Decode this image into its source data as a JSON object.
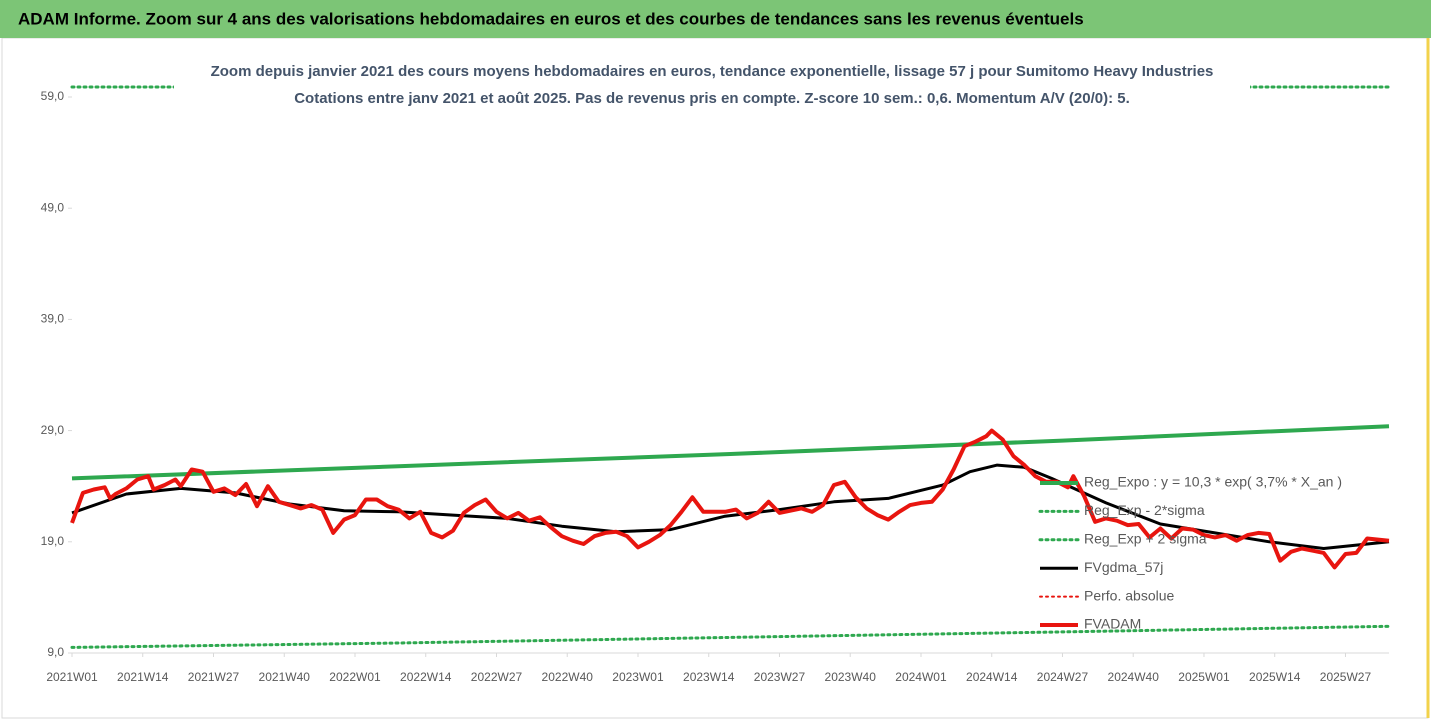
{
  "chart_data": {
    "type": "line",
    "header": "ADAM Informe. Zoom sur 4 ans des valorisations hebdomadaires en euros et des courbes de tendances sans les revenus éventuels",
    "title": "Zoom depuis janvier 2021 des cours moyens hebdomadaires en euros, tendance exponentielle, lissage 57 j pour Sumitomo Heavy Industries",
    "subtitle": "Cotations entre janv 2021 et août 2025.  Pas de revenus pris en compte. Z-score 10 sem.: 0,6. Momentum A/V (20/0): 5.",
    "xlim": [
      0,
      242
    ],
    "xticks": [
      {
        "value": 0,
        "label": "2021W01"
      },
      {
        "value": 13,
        "label": "2021W14"
      },
      {
        "value": 26,
        "label": "2021W27"
      },
      {
        "value": 39,
        "label": "2021W40"
      },
      {
        "value": 52,
        "label": "2022W01"
      },
      {
        "value": 65,
        "label": "2022W14"
      },
      {
        "value": 78,
        "label": "2022W27"
      },
      {
        "value": 91,
        "label": "2022W40"
      },
      {
        "value": 104,
        "label": "2023W01"
      },
      {
        "value": 117,
        "label": "2023W14"
      },
      {
        "value": 130,
        "label": "2023W27"
      },
      {
        "value": 143,
        "label": "2023W40"
      },
      {
        "value": 156,
        "label": "2024W01"
      },
      {
        "value": 169,
        "label": "2024W14"
      },
      {
        "value": 182,
        "label": "2024W27"
      },
      {
        "value": 195,
        "label": "2024W40"
      },
      {
        "value": 208,
        "label": "2025W01"
      },
      {
        "value": 221,
        "label": "2025W14"
      },
      {
        "value": 234,
        "label": "2025W27"
      }
    ],
    "ylim": [
      9,
      59
    ],
    "yticks": [
      {
        "value": 9,
        "label": "9,0"
      },
      {
        "value": 19,
        "label": "19,0"
      },
      {
        "value": 29,
        "label": "29,0"
      },
      {
        "value": 39,
        "label": "39,0"
      },
      {
        "value": 49,
        "label": "49,0"
      },
      {
        "value": 59,
        "label": "59,0"
      }
    ],
    "grid": false,
    "legend": "right",
    "series": [
      {
        "name": "Reg_Expo : y = 10,3 * exp( 3,7% *  X_an )",
        "color": "#2ea84f",
        "style": "solid",
        "width": 4,
        "x": [
          0,
          60,
          121,
          182,
          242
        ],
        "values": [
          24.7,
          25.8,
          26.9,
          28.1,
          29.4
        ]
      },
      {
        "name": "Reg_Exp - 2*sigma",
        "color": "#2ea84f",
        "style": "dotted",
        "width": 3,
        "x": [
          0,
          60,
          121,
          182,
          242
        ],
        "values": [
          9.5,
          9.9,
          10.4,
          10.9,
          11.4
        ]
      },
      {
        "name": "Reg_Exp + 2 sigma",
        "color": "#2ea84f",
        "style": "dotted",
        "width": 3,
        "x": [
          0,
          242
        ],
        "values": [
          59.9,
          59.9
        ]
      },
      {
        "name": "FVgdma_57j",
        "color": "#000000",
        "style": "solid",
        "width": 3,
        "x": [
          0,
          10,
          20,
          30,
          40,
          50,
          60,
          70,
          80,
          90,
          100,
          110,
          120,
          130,
          140,
          150,
          160,
          165,
          170,
          175,
          180,
          190,
          200,
          210,
          220,
          230,
          242
        ],
        "values": [
          21.6,
          23.3,
          23.8,
          23.4,
          22.4,
          21.8,
          21.7,
          21.4,
          21.1,
          20.4,
          19.9,
          20.1,
          21.3,
          21.9,
          22.6,
          22.9,
          24.1,
          25.3,
          25.9,
          25.7,
          24.7,
          22.5,
          20.6,
          19.8,
          19.0,
          18.4,
          19.0
        ]
      },
      {
        "name": "Perfo. absolue",
        "color": "#e8150f",
        "style": "dotted",
        "width": 2,
        "x": [],
        "values": []
      },
      {
        "name": "FVADAM",
        "color": "#e8150f",
        "style": "solid",
        "width": 4,
        "x": [
          0,
          2,
          4,
          6,
          7,
          8,
          10,
          12,
          14,
          15,
          17,
          19,
          20,
          22,
          24,
          26,
          28,
          30,
          32,
          34,
          36,
          38,
          40,
          42,
          44,
          46,
          48,
          50,
          52,
          54,
          56,
          58,
          60,
          62,
          64,
          66,
          68,
          70,
          72,
          74,
          76,
          78,
          80,
          82,
          84,
          86,
          88,
          90,
          92,
          94,
          96,
          98,
          100,
          102,
          104,
          106,
          108,
          110,
          112,
          114,
          116,
          118,
          120,
          122,
          124,
          126,
          128,
          130,
          132,
          134,
          136,
          138,
          140,
          142,
          144,
          146,
          148,
          150,
          152,
          154,
          156,
          158,
          160,
          162,
          164,
          166,
          168,
          169,
          171,
          173,
          175,
          177,
          179,
          181,
          183,
          184,
          186,
          188,
          190,
          192,
          194,
          196,
          198,
          200,
          202,
          204,
          206,
          208,
          210,
          212,
          214,
          216,
          218,
          220,
          222,
          224,
          226,
          228,
          230,
          232,
          234,
          236,
          238,
          240,
          242
        ],
        "values": [
          20.7,
          23.4,
          23.7,
          23.9,
          22.9,
          23.3,
          23.8,
          24.6,
          24.9,
          23.7,
          24.1,
          24.6,
          24.0,
          25.5,
          25.3,
          23.5,
          23.8,
          23.2,
          24.2,
          22.2,
          24.0,
          22.6,
          22.3,
          22.0,
          22.3,
          21.9,
          19.8,
          21.0,
          21.4,
          22.8,
          22.8,
          22.2,
          21.9,
          21.1,
          21.7,
          19.8,
          19.4,
          20.0,
          21.6,
          22.3,
          22.8,
          21.7,
          21.1,
          21.6,
          20.9,
          21.2,
          20.3,
          19.5,
          19.1,
          18.8,
          19.5,
          19.8,
          19.9,
          19.5,
          18.5,
          19.0,
          19.6,
          20.5,
          21.7,
          23.0,
          21.7,
          21.7,
          21.7,
          21.9,
          21.1,
          21.6,
          22.6,
          21.6,
          21.8,
          22.0,
          21.7,
          22.3,
          24.1,
          24.4,
          23.0,
          22.0,
          21.4,
          21.0,
          21.7,
          22.3,
          22.5,
          22.6,
          23.7,
          25.5,
          27.6,
          28.0,
          28.5,
          29.0,
          28.2,
          26.7,
          25.9,
          24.9,
          24.4,
          24.4,
          23.9,
          24.9,
          23.1,
          20.8,
          21.1,
          20.9,
          20.5,
          20.6,
          19.4,
          20.2,
          19.3,
          20.2,
          20.1,
          19.6,
          19.4,
          19.6,
          19.1,
          19.6,
          19.8,
          19.7,
          17.3,
          18.1,
          18.4,
          18.2,
          18.0,
          16.7,
          17.9,
          18.0,
          19.3,
          19.2,
          19.1
        ]
      }
    ]
  }
}
